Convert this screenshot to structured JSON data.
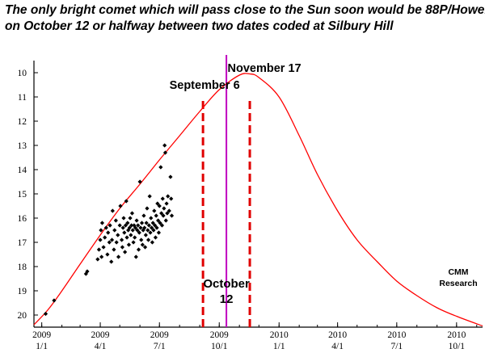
{
  "chart_data": {
    "type": "line",
    "title_lines": [
      "The only bright comet which will pass close to the Sun soon would be 88P/Howell,",
      "on October 12 or halfway between two dates coded at Silbury Hill"
    ],
    "y_axis": {
      "inverted": true,
      "range": [
        10,
        20
      ],
      "ticks": [
        10,
        11,
        12,
        13,
        14,
        15,
        16,
        17,
        18,
        19,
        20
      ]
    },
    "x_axis": {
      "range": [
        "2008-12-20",
        "2010-11-10"
      ],
      "ticks": [
        {
          "date": "2009-01-01",
          "top": "2009",
          "bottom": "1/1"
        },
        {
          "date": "2009-04-01",
          "top": "2009",
          "bottom": "4/1"
        },
        {
          "date": "2009-07-01",
          "top": "2009",
          "bottom": "7/1"
        },
        {
          "date": "2009-10-01",
          "top": "2009",
          "bottom": "10/1"
        },
        {
          "date": "2010-01-01",
          "top": "2010",
          "bottom": "1/1"
        },
        {
          "date": "2010-04-01",
          "top": "2010",
          "bottom": "4/1"
        },
        {
          "date": "2010-07-01",
          "top": "2010",
          "bottom": "7/1"
        },
        {
          "date": "2010-10-01",
          "top": "2010",
          "bottom": "10/1"
        }
      ]
    },
    "curve": {
      "color": "#ff0000",
      "points": [
        [
          "2008-12-20",
          20.4
        ],
        [
          "2009-01-10",
          19.8
        ],
        [
          "2009-02-01",
          19.0
        ],
        [
          "2009-03-01",
          17.9
        ],
        [
          "2009-04-01",
          16.7
        ],
        [
          "2009-05-01",
          15.6
        ],
        [
          "2009-06-01",
          14.6
        ],
        [
          "2009-07-01",
          13.6
        ],
        [
          "2009-08-01",
          12.6
        ],
        [
          "2009-09-01",
          11.6
        ],
        [
          "2009-10-01",
          10.7
        ],
        [
          "2009-11-01",
          10.1
        ],
        [
          "2009-11-17",
          10.05
        ],
        [
          "2009-12-01",
          10.2
        ],
        [
          "2010-01-01",
          11.0
        ],
        [
          "2010-02-01",
          12.6
        ],
        [
          "2010-03-01",
          14.2
        ],
        [
          "2010-04-01",
          15.7
        ],
        [
          "2010-05-01",
          16.9
        ],
        [
          "2010-06-01",
          17.8
        ],
        [
          "2010-07-01",
          18.6
        ],
        [
          "2010-08-01",
          19.2
        ],
        [
          "2010-09-01",
          19.7
        ],
        [
          "2010-10-01",
          20.05
        ],
        [
          "2010-11-10",
          20.45
        ]
      ]
    },
    "observations": {
      "color": "#000000",
      "note": "black diamond markers, observed magnitudes",
      "points": [
        [
          "2009-01-07",
          19.95
        ],
        [
          "2009-01-20",
          19.4
        ],
        [
          "2009-03-10",
          18.3
        ],
        [
          "2009-03-12",
          18.2
        ],
        [
          "2009-03-28",
          17.7
        ],
        [
          "2009-03-30",
          17.3
        ],
        [
          "2009-04-01",
          16.9
        ],
        [
          "2009-04-02",
          16.5
        ],
        [
          "2009-04-03",
          17.6
        ],
        [
          "2009-04-04",
          16.2
        ],
        [
          "2009-04-06",
          17.2
        ],
        [
          "2009-04-08",
          16.8
        ],
        [
          "2009-04-10",
          16.4
        ],
        [
          "2009-04-12",
          17.5
        ],
        [
          "2009-04-13",
          16.6
        ],
        [
          "2009-04-15",
          17.0
        ],
        [
          "2009-04-16",
          16.3
        ],
        [
          "2009-04-18",
          17.8
        ],
        [
          "2009-04-19",
          16.9
        ],
        [
          "2009-04-20",
          15.7
        ],
        [
          "2009-04-22",
          17.3
        ],
        [
          "2009-04-23",
          16.5
        ],
        [
          "2009-04-25",
          16.1
        ],
        [
          "2009-04-26",
          17.0
        ],
        [
          "2009-04-28",
          16.7
        ],
        [
          "2009-04-29",
          17.6
        ],
        [
          "2009-05-01",
          16.3
        ],
        [
          "2009-05-02",
          15.5
        ],
        [
          "2009-05-04",
          16.9
        ],
        [
          "2009-05-05",
          17.2
        ],
        [
          "2009-05-06",
          16.4
        ],
        [
          "2009-05-07",
          16.0
        ],
        [
          "2009-05-08",
          16.6
        ],
        [
          "2009-05-09",
          17.4
        ],
        [
          "2009-05-10",
          16.3
        ],
        [
          "2009-05-11",
          15.3
        ],
        [
          "2009-05-12",
          16.8
        ],
        [
          "2009-05-13",
          16.2
        ],
        [
          "2009-05-14",
          16.5
        ],
        [
          "2009-05-15",
          17.1
        ],
        [
          "2009-05-16",
          16.4
        ],
        [
          "2009-05-17",
          16.0
        ],
        [
          "2009-05-18",
          16.7
        ],
        [
          "2009-05-19",
          16.3
        ],
        [
          "2009-05-20",
          15.8
        ],
        [
          "2009-05-21",
          16.5
        ],
        [
          "2009-05-22",
          17.0
        ],
        [
          "2009-05-23",
          16.3
        ],
        [
          "2009-05-24",
          16.8
        ],
        [
          "2009-05-25",
          16.4
        ],
        [
          "2009-05-26",
          17.6
        ],
        [
          "2009-05-27",
          16.1
        ],
        [
          "2009-05-28",
          16.5
        ],
        [
          "2009-05-29",
          16.3
        ],
        [
          "2009-05-30",
          17.3
        ],
        [
          "2009-05-31",
          16.6
        ],
        [
          "2009-06-01",
          14.5
        ],
        [
          "2009-06-02",
          16.4
        ],
        [
          "2009-06-03",
          16.9
        ],
        [
          "2009-06-04",
          16.2
        ],
        [
          "2009-06-05",
          17.1
        ],
        [
          "2009-06-06",
          16.5
        ],
        [
          "2009-06-07",
          15.9
        ],
        [
          "2009-06-08",
          16.4
        ],
        [
          "2009-06-09",
          17.2
        ],
        [
          "2009-06-10",
          16.7
        ],
        [
          "2009-06-11",
          16.2
        ],
        [
          "2009-06-12",
          15.6
        ],
        [
          "2009-06-13",
          16.5
        ],
        [
          "2009-06-14",
          16.9
        ],
        [
          "2009-06-15",
          16.3
        ],
        [
          "2009-06-16",
          15.1
        ],
        [
          "2009-06-17",
          16.6
        ],
        [
          "2009-06-18",
          16.0
        ],
        [
          "2009-06-19",
          16.4
        ],
        [
          "2009-06-20",
          17.0
        ],
        [
          "2009-06-21",
          16.2
        ],
        [
          "2009-06-22",
          16.5
        ],
        [
          "2009-06-23",
          15.7
        ],
        [
          "2009-06-24",
          16.3
        ],
        [
          "2009-06-25",
          16.8
        ],
        [
          "2009-06-26",
          15.9
        ],
        [
          "2009-06-27",
          16.4
        ],
        [
          "2009-06-28",
          15.4
        ],
        [
          "2009-06-29",
          16.1
        ],
        [
          "2009-06-30",
          16.6
        ],
        [
          "2009-07-01",
          15.5
        ],
        [
          "2009-07-02",
          16.2
        ],
        [
          "2009-07-03",
          13.9
        ],
        [
          "2009-07-04",
          15.8
        ],
        [
          "2009-07-05",
          16.3
        ],
        [
          "2009-07-06",
          15.2
        ],
        [
          "2009-07-07",
          15.9
        ],
        [
          "2009-07-08",
          15.6
        ],
        [
          "2009-07-09",
          13.0
        ],
        [
          "2009-07-10",
          13.3
        ],
        [
          "2009-07-11",
          16.1
        ],
        [
          "2009-07-12",
          15.4
        ],
        [
          "2009-07-13",
          15.8
        ],
        [
          "2009-07-14",
          15.1
        ],
        [
          "2009-07-16",
          15.7
        ],
        [
          "2009-07-18",
          14.3
        ],
        [
          "2009-07-19",
          15.2
        ],
        [
          "2009-07-20",
          15.9
        ]
      ]
    },
    "markers": [
      {
        "date": "2009-09-06",
        "label": "September 6",
        "style": "dashed",
        "color": "#e00000"
      },
      {
        "date": "2009-10-12",
        "label_line1": "October",
        "label_line2": "12",
        "style": "solid",
        "color": "#c000c0"
      },
      {
        "date": "2009-11-17",
        "label": "November 17",
        "style": "dashed",
        "color": "#e00000"
      }
    ],
    "credit_lines": [
      "CMM",
      "Research"
    ]
  }
}
